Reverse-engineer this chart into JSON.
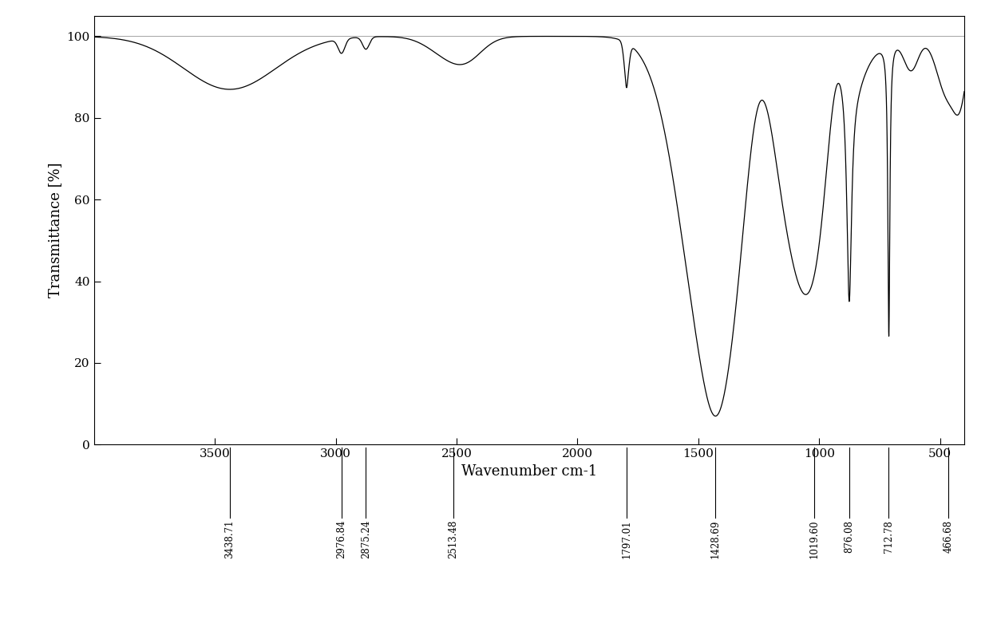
{
  "title": "",
  "xlabel": "Wavenumber cm-1",
  "ylabel": "Transmittance [%]",
  "xlim": [
    4000,
    400
  ],
  "ylim": [
    0,
    105
  ],
  "yticks": [
    0,
    20,
    40,
    60,
    80,
    100
  ],
  "xticks": [
    3500,
    3000,
    2500,
    2000,
    1500,
    1000,
    500
  ],
  "line_color": "#000000",
  "background_color": "#ffffff",
  "peak_labels": [
    {
      "wavenumber": 3438.71,
      "label": "3438.71"
    },
    {
      "wavenumber": 2976.84,
      "label": "2976.84"
    },
    {
      "wavenumber": 2875.24,
      "label": "2875.24"
    },
    {
      "wavenumber": 2513.48,
      "label": "2513.48"
    },
    {
      "wavenumber": 1797.01,
      "label": "1797.01"
    },
    {
      "wavenumber": 1428.69,
      "label": "1428.69"
    },
    {
      "wavenumber": 1019.6,
      "label": "1019.60"
    },
    {
      "wavenumber": 876.08,
      "label": "876.08"
    },
    {
      "wavenumber": 712.78,
      "label": "712.78"
    },
    {
      "wavenumber": 466.68,
      "label": "466.68"
    }
  ]
}
